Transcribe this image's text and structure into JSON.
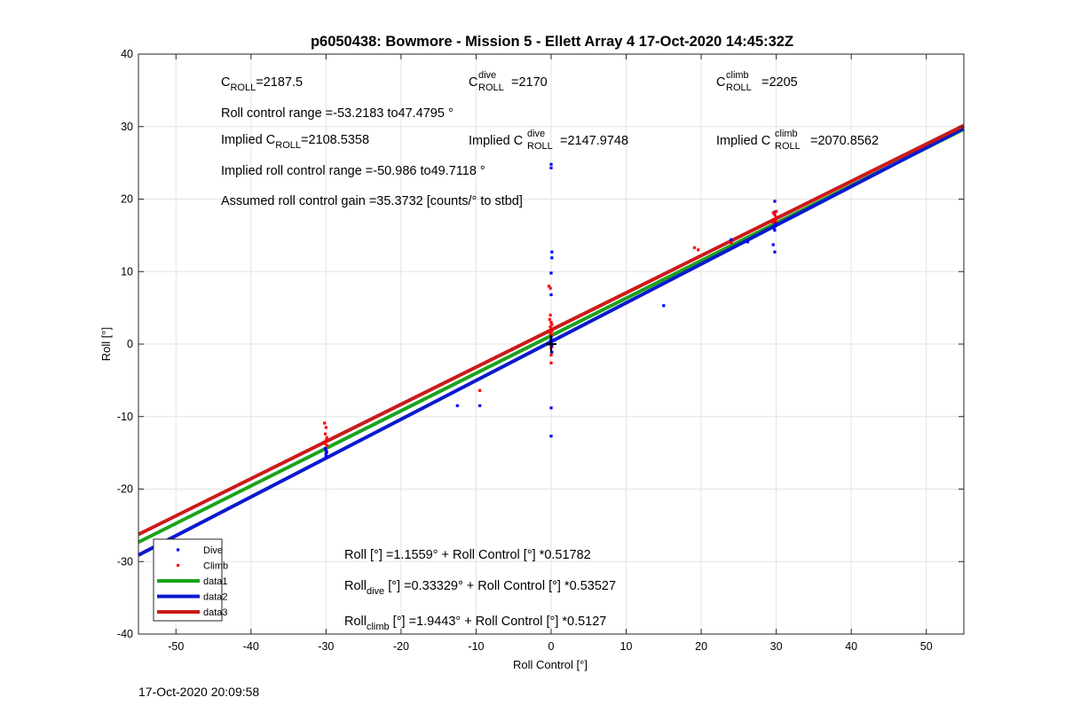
{
  "chart_data": {
    "type": "scatter",
    "title": "p6050438: Bowmore - Mission 5 - Ellett Array 4 17-Oct-2020 14:45:32Z",
    "xlabel": "Roll Control [°]",
    "ylabel": "Roll [°]",
    "xlim": [
      -55,
      55
    ],
    "ylim": [
      -40,
      40
    ],
    "xticks": [
      -50,
      -40,
      -30,
      -20,
      -10,
      0,
      10,
      20,
      30,
      40,
      50
    ],
    "yticks": [
      -40,
      -30,
      -20,
      -10,
      0,
      10,
      20,
      30,
      40
    ],
    "grid": true,
    "legend": {
      "placement": "bottom-left",
      "entries": [
        "Dive",
        "Climb",
        "data1",
        "data2",
        "data3"
      ]
    },
    "colors": {
      "dive": "#0000ff",
      "climb": "#ff0000",
      "data1": "#1aa31a",
      "data2": "#0a1acc",
      "data3": "#cc1a1a"
    },
    "series": [
      {
        "name": "Dive",
        "kind": "points",
        "color": "#0000ff",
        "points": [
          [
            -30,
            -14.6
          ],
          [
            -30,
            -15.0
          ],
          [
            -30,
            -15.3
          ],
          [
            -30.1,
            -14.4
          ],
          [
            -29.9,
            -14.9
          ],
          [
            -30,
            -15.5
          ],
          [
            -12.5,
            -8.5
          ],
          [
            -9.5,
            -8.5
          ],
          [
            0,
            24.8
          ],
          [
            0,
            24.3
          ],
          [
            0.1,
            12.7
          ],
          [
            0.1,
            11.9
          ],
          [
            0,
            9.8
          ],
          [
            0,
            6.8
          ],
          [
            0,
            -8.8
          ],
          [
            0,
            -12.7
          ],
          [
            0,
            0.6
          ],
          [
            0,
            0.2
          ],
          [
            0.1,
            -0.3
          ],
          [
            -0.1,
            0.4
          ],
          [
            0,
            1.0
          ],
          [
            0.1,
            -1.1
          ],
          [
            -0.2,
            0.0
          ],
          [
            15,
            5.3
          ],
          [
            24,
            14.4
          ],
          [
            26.2,
            14.1
          ],
          [
            29.8,
            19.7
          ],
          [
            29.8,
            18.2
          ],
          [
            29.9,
            16.6
          ],
          [
            29.7,
            16.0
          ],
          [
            29.8,
            15.7
          ],
          [
            29.6,
            13.7
          ],
          [
            29.8,
            12.7
          ],
          [
            29.9,
            16.3
          ]
        ]
      },
      {
        "name": "Climb",
        "kind": "points",
        "color": "#ff0000",
        "points": [
          [
            -30.2,
            -10.9
          ],
          [
            -30,
            -11.5
          ],
          [
            -30.1,
            -12.4
          ],
          [
            -29.9,
            -12.9
          ],
          [
            -30,
            -13.3
          ],
          [
            -30.1,
            -13.7
          ],
          [
            -29.9,
            -14.0
          ],
          [
            -9.5,
            -6.4
          ],
          [
            -0.3,
            8.0
          ],
          [
            -0.1,
            7.7
          ],
          [
            -0.1,
            4.0
          ],
          [
            -0.2,
            3.4
          ],
          [
            0,
            3.0
          ],
          [
            0.1,
            2.7
          ],
          [
            -0.1,
            2.4
          ],
          [
            0,
            2.1
          ],
          [
            0.1,
            1.8
          ],
          [
            -0.1,
            1.5
          ],
          [
            0,
            1.3
          ],
          [
            0,
            -0.5
          ],
          [
            0,
            -1.5
          ],
          [
            0,
            -2.6
          ],
          [
            19.1,
            13.3
          ],
          [
            19.6,
            13.0
          ],
          [
            24,
            14.0
          ],
          [
            29.6,
            18.1
          ],
          [
            29.8,
            17.8
          ],
          [
            30,
            17.5
          ],
          [
            29.7,
            17.2
          ],
          [
            29.9,
            17.0
          ],
          [
            29.6,
            16.8
          ],
          [
            30,
            18.3
          ]
        ]
      },
      {
        "name": "data1",
        "kind": "line",
        "color": "#1aa31a",
        "intercept": 1.1559,
        "slope": 0.51782
      },
      {
        "name": "data2",
        "kind": "line",
        "color": "#0a1acc",
        "intercept": 0.33329,
        "slope": 0.53527
      },
      {
        "name": "data3",
        "kind": "line",
        "color": "#cc1a1a",
        "intercept": 1.9443,
        "slope": 0.5127
      }
    ],
    "annotations": {
      "c_roll": {
        "base": "C",
        "sub": "ROLL",
        "value": "=2187.5"
      },
      "c_roll_dive": {
        "base": "C",
        "sup": "dive",
        "sub": "ROLL",
        "value": "=2170"
      },
      "c_roll_climb": {
        "base": "C",
        "sup": "climb",
        "sub": "ROLL",
        "value": "=2205"
      },
      "roll_range": "Roll control range =-53.2183 to47.4795 °",
      "implied_c": {
        "prefix": "Implied C",
        "sub": "ROLL",
        "value": "=2108.5358"
      },
      "implied_dive": {
        "prefix": "Implied C",
        "sup": "dive",
        "sub": "ROLL",
        "value": "=2147.9748"
      },
      "implied_climb": {
        "prefix": "Implied C",
        "sup": "climb",
        "sub": "ROLL",
        "value": "=2070.8562"
      },
      "implied_range": "Implied roll control range =-50.986 to49.7118 °",
      "gain": "Assumed roll control gain =35.3732 [counts/° to stbd]",
      "fit_all": "Roll [°] =1.1559° + Roll Control [°] *0.51782",
      "fit_dive": {
        "base": "Roll",
        "sub": "dive",
        "rest": " [°] =0.33329° + Roll Control [°] *0.53527"
      },
      "fit_climb": {
        "base": "Roll",
        "sub": "climb",
        "rest": " [°] =1.9443° + Roll Control [°] *0.5127"
      }
    }
  },
  "footer": {
    "timestamp": "17-Oct-2020 20:09:58"
  }
}
